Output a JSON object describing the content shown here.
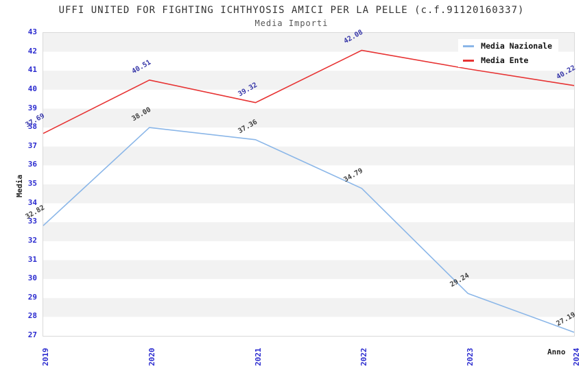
{
  "header": {
    "title": "UFFI UNITED FOR FIGHTING ICHTHYOSIS AMICI PER LA PELLE (c.f.91120160337)",
    "subtitle": "Media Importi"
  },
  "chart_data": {
    "type": "line",
    "categories": [
      "2019",
      "2020",
      "2021",
      "2022",
      "2023",
      "2024"
    ],
    "series": [
      {
        "name": "Media Nazionale",
        "color": "#8ab6e8",
        "label_color": "#404040",
        "values": [
          32.82,
          38.0,
          37.36,
          34.79,
          29.24,
          27.19
        ],
        "labels": [
          "32.82",
          "38.00",
          "37.36",
          "34.79",
          "29.24",
          "27.19"
        ]
      },
      {
        "name": "Media Ente",
        "color": "#e73333",
        "label_color": "#3636a8",
        "values": [
          37.69,
          40.51,
          39.32,
          42.08,
          41.1,
          40.22
        ],
        "labels": [
          "37.69",
          "40.51",
          "39.32",
          "42.08",
          null,
          "40.22"
        ]
      }
    ],
    "xlabel": "Anno",
    "ylabel": "Media",
    "ylim": [
      27,
      43
    ],
    "ytick_step": 1,
    "legend_position": "top-right",
    "grid": "alternating-horizontal-bands"
  },
  "colors": {
    "tick_label": "#2b2bcf",
    "band": "#f2f2f2",
    "plot_border": "#d9d9d9",
    "title": "#333333",
    "subtitle": "#555555",
    "axis_title": "#222222",
    "legend_text": "#111111",
    "background": "#ffffff"
  }
}
